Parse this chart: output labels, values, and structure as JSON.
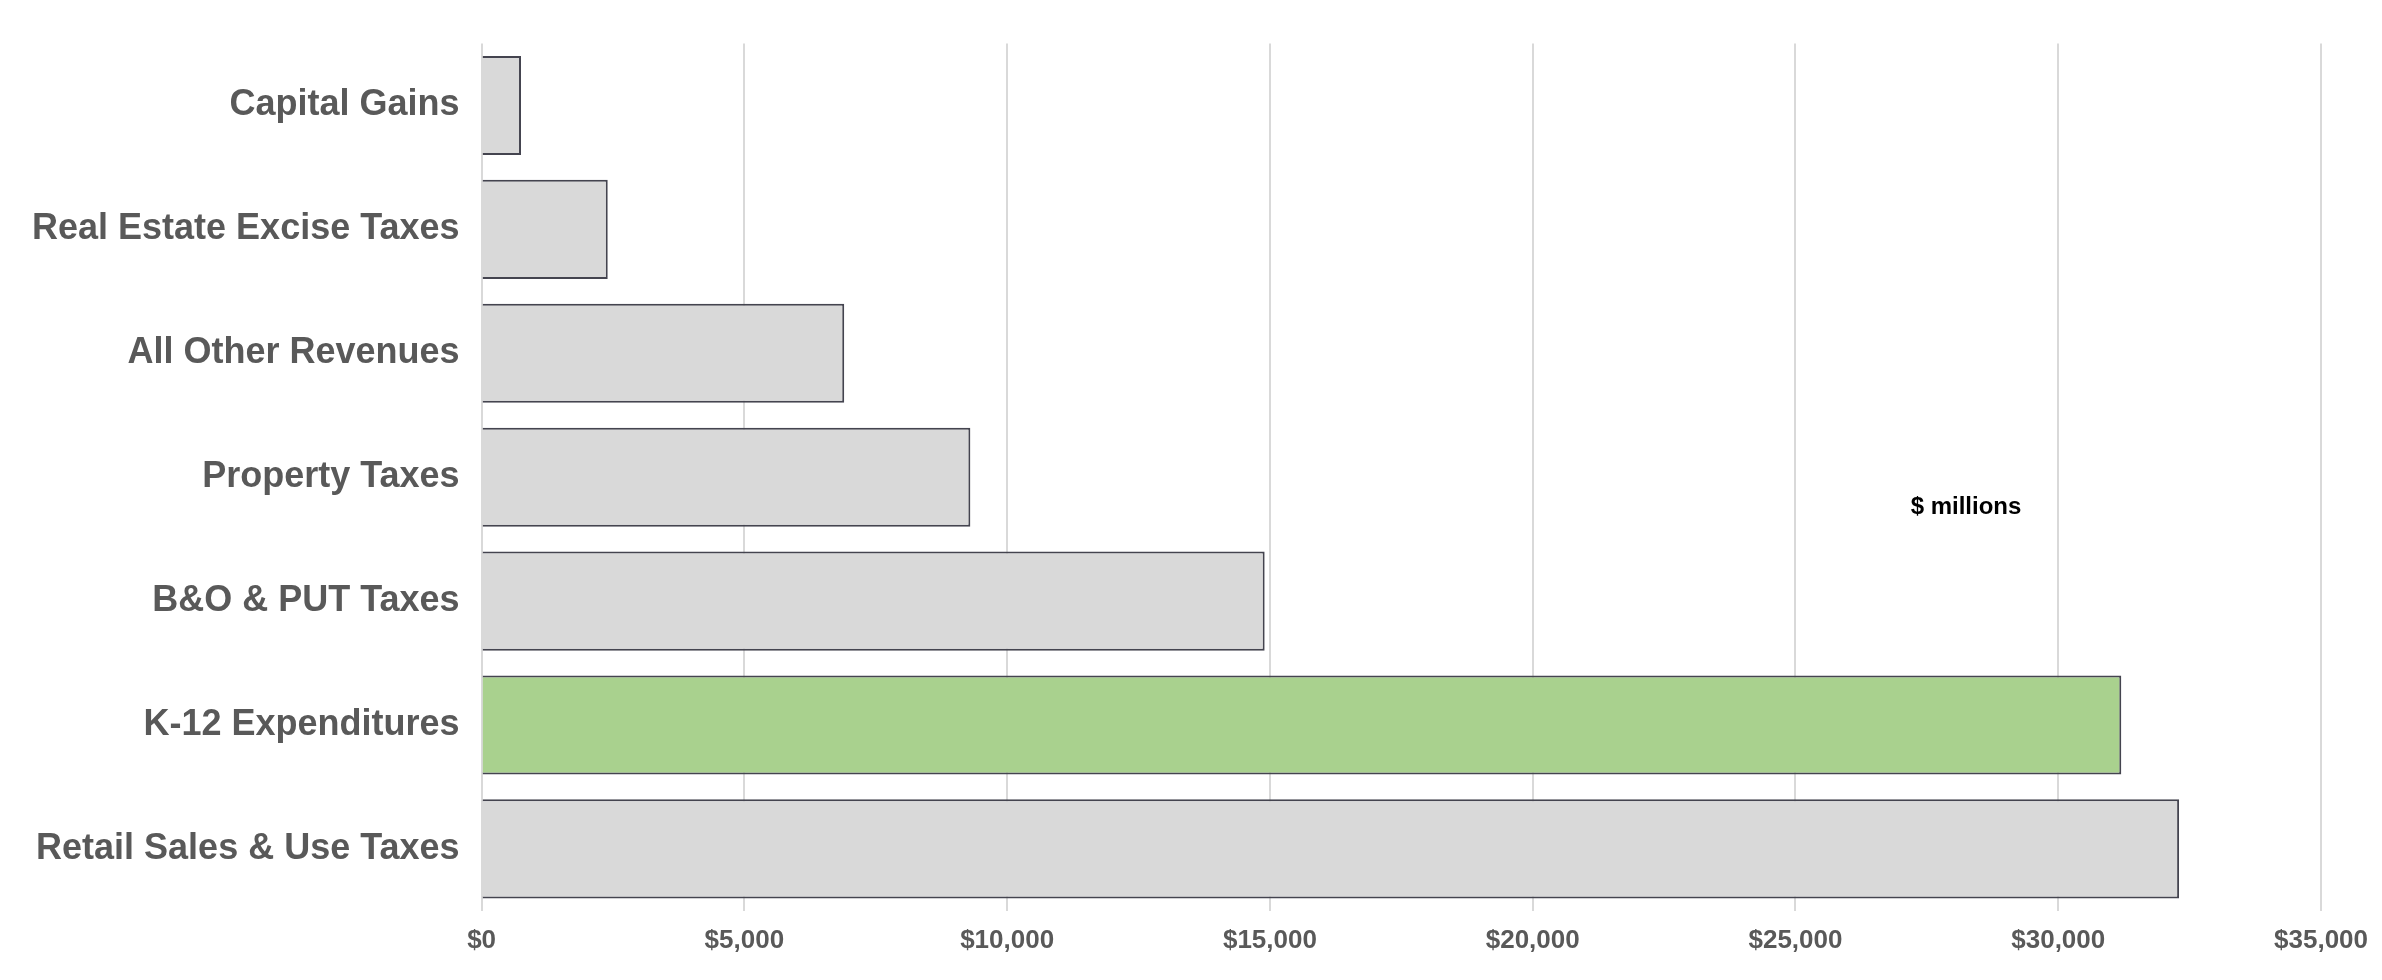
{
  "chart_data": {
    "type": "bar",
    "orientation": "horizontal",
    "categories": [
      "Capital Gains",
      "Real Estate Excise Taxes",
      "All Other Revenues",
      "Property Taxes",
      "B&O & PUT Taxes",
      "K-12 Expenditures",
      "Retail Sales & Use Taxes"
    ],
    "values": [
      750,
      2400,
      6900,
      9300,
      14900,
      31200,
      32300
    ],
    "colors": [
      "#d9d9d9",
      "#d9d9d9",
      "#d9d9d9",
      "#d9d9d9",
      "#d9d9d9",
      "#a9d18e",
      "#d9d9d9"
    ],
    "xlim": [
      0,
      35000
    ],
    "xticks": [
      {
        "value": 0,
        "label": "$0"
      },
      {
        "value": 5000,
        "label": "$5,000"
      },
      {
        "value": 10000,
        "label": "$10,000"
      },
      {
        "value": 15000,
        "label": "$15,000"
      },
      {
        "value": 20000,
        "label": "$20,000"
      },
      {
        "value": 25000,
        "label": "$25,000"
      },
      {
        "value": 30000,
        "label": "$30,000"
      },
      {
        "value": 35000,
        "label": "$35,000"
      }
    ],
    "annotations": [
      "$ millions"
    ],
    "grid": "x",
    "legend": false
  }
}
